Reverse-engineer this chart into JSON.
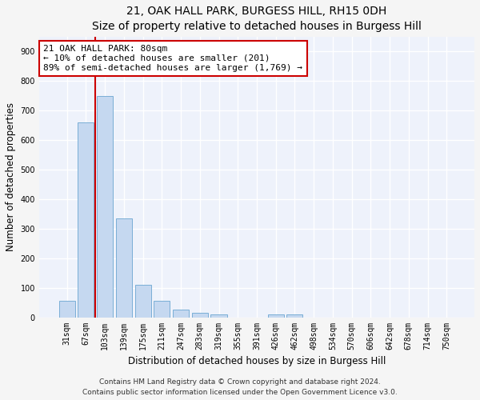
{
  "title": "21, OAK HALL PARK, BURGESS HILL, RH15 0DH",
  "subtitle": "Size of property relative to detached houses in Burgess Hill",
  "xlabel": "Distribution of detached houses by size in Burgess Hill",
  "ylabel": "Number of detached properties",
  "categories": [
    "31sqm",
    "67sqm",
    "103sqm",
    "139sqm",
    "175sqm",
    "211sqm",
    "247sqm",
    "283sqm",
    "319sqm",
    "355sqm",
    "391sqm",
    "426sqm",
    "462sqm",
    "498sqm",
    "534sqm",
    "570sqm",
    "606sqm",
    "642sqm",
    "678sqm",
    "714sqm",
    "750sqm"
  ],
  "values": [
    55,
    660,
    750,
    335,
    110,
    55,
    25,
    15,
    10,
    0,
    0,
    10,
    10,
    0,
    0,
    0,
    0,
    0,
    0,
    0,
    0
  ],
  "bar_color": "#c5d8f0",
  "bar_edge_color": "#7aaed6",
  "vline_x_index": 1.5,
  "vline_color": "#cc0000",
  "annotation_text": "21 OAK HALL PARK: 80sqm\n← 10% of detached houses are smaller (201)\n89% of semi-detached houses are larger (1,769) →",
  "annotation_box_color": "#ffffff",
  "annotation_box_edge": "#cc0000",
  "ylim": [
    0,
    950
  ],
  "yticks": [
    0,
    100,
    200,
    300,
    400,
    500,
    600,
    700,
    800,
    900
  ],
  "footer1": "Contains HM Land Registry data © Crown copyright and database right 2024.",
  "footer2": "Contains public sector information licensed under the Open Government Licence v3.0.",
  "bg_color": "#eef2fb",
  "fig_color": "#f5f5f5",
  "grid_color": "#ffffff",
  "title_fontsize": 10,
  "tick_fontsize": 7,
  "ylabel_fontsize": 8.5,
  "xlabel_fontsize": 8.5,
  "annotation_fontsize": 8,
  "footer_fontsize": 6.5
}
